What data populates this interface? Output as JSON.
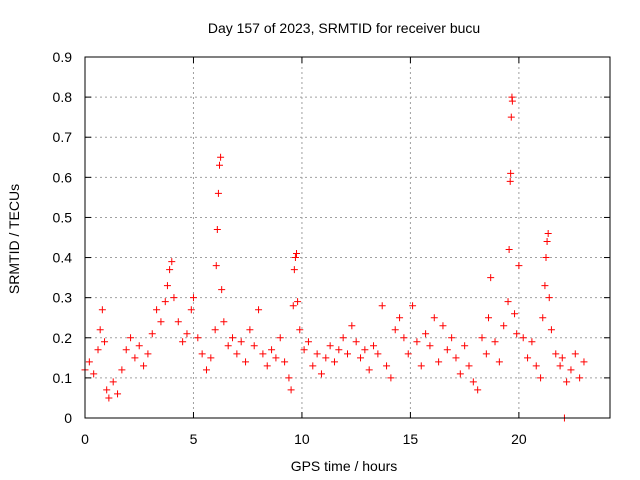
{
  "chart_data": {
    "type": "scatter",
    "title": "Day 157 of 2023, SRMTID for receiver bucu",
    "xlabel": "GPS time / hours",
    "ylabel": "SRMTID / TECUs",
    "xlim": [
      0,
      24.2
    ],
    "ylim": [
      0,
      0.9
    ],
    "xticks": [
      "0",
      "5",
      "10",
      "15",
      "20"
    ],
    "yticks": [
      "0",
      "0.1",
      "0.2",
      "0.3",
      "0.4",
      "0.5",
      "0.6",
      "0.7",
      "0.8",
      "0.9"
    ],
    "grid": true,
    "marker": "+",
    "color": "#ff0000",
    "series": [
      {
        "name": "SRMTID",
        "points": [
          [
            0.0,
            0.12
          ],
          [
            0.2,
            0.14
          ],
          [
            0.4,
            0.11
          ],
          [
            0.6,
            0.17
          ],
          [
            0.7,
            0.22
          ],
          [
            0.8,
            0.27
          ],
          [
            0.9,
            0.19
          ],
          [
            1.0,
            0.07
          ],
          [
            1.1,
            0.05
          ],
          [
            1.3,
            0.09
          ],
          [
            1.5,
            0.06
          ],
          [
            1.7,
            0.12
          ],
          [
            1.9,
            0.17
          ],
          [
            2.1,
            0.2
          ],
          [
            2.3,
            0.15
          ],
          [
            2.5,
            0.18
          ],
          [
            2.7,
            0.13
          ],
          [
            2.9,
            0.16
          ],
          [
            3.1,
            0.21
          ],
          [
            3.3,
            0.27
          ],
          [
            3.5,
            0.24
          ],
          [
            3.7,
            0.29
          ],
          [
            3.8,
            0.33
          ],
          [
            3.9,
            0.37
          ],
          [
            4.0,
            0.39
          ],
          [
            4.1,
            0.3
          ],
          [
            4.3,
            0.24
          ],
          [
            4.5,
            0.19
          ],
          [
            4.7,
            0.21
          ],
          [
            4.9,
            0.27
          ],
          [
            5.0,
            0.3
          ],
          [
            5.2,
            0.2
          ],
          [
            5.4,
            0.16
          ],
          [
            5.6,
            0.12
          ],
          [
            5.8,
            0.15
          ],
          [
            6.0,
            0.22
          ],
          [
            6.05,
            0.38
          ],
          [
            6.1,
            0.47
          ],
          [
            6.15,
            0.56
          ],
          [
            6.2,
            0.63
          ],
          [
            6.25,
            0.65
          ],
          [
            6.3,
            0.32
          ],
          [
            6.4,
            0.24
          ],
          [
            6.6,
            0.18
          ],
          [
            6.8,
            0.2
          ],
          [
            7.0,
            0.16
          ],
          [
            7.2,
            0.19
          ],
          [
            7.4,
            0.14
          ],
          [
            7.6,
            0.22
          ],
          [
            7.8,
            0.18
          ],
          [
            8.0,
            0.27
          ],
          [
            8.2,
            0.16
          ],
          [
            8.4,
            0.13
          ],
          [
            8.6,
            0.17
          ],
          [
            8.8,
            0.15
          ],
          [
            9.0,
            0.2
          ],
          [
            9.2,
            0.14
          ],
          [
            9.4,
            0.1
          ],
          [
            9.5,
            0.07
          ],
          [
            9.6,
            0.28
          ],
          [
            9.65,
            0.37
          ],
          [
            9.7,
            0.4
          ],
          [
            9.75,
            0.41
          ],
          [
            9.8,
            0.29
          ],
          [
            9.9,
            0.22
          ],
          [
            10.1,
            0.17
          ],
          [
            10.3,
            0.19
          ],
          [
            10.5,
            0.13
          ],
          [
            10.7,
            0.16
          ],
          [
            10.9,
            0.11
          ],
          [
            11.1,
            0.15
          ],
          [
            11.3,
            0.18
          ],
          [
            11.5,
            0.14
          ],
          [
            11.7,
            0.17
          ],
          [
            11.9,
            0.2
          ],
          [
            12.1,
            0.16
          ],
          [
            12.3,
            0.23
          ],
          [
            12.5,
            0.19
          ],
          [
            12.7,
            0.15
          ],
          [
            12.9,
            0.17
          ],
          [
            13.1,
            0.12
          ],
          [
            13.3,
            0.18
          ],
          [
            13.5,
            0.16
          ],
          [
            13.7,
            0.28
          ],
          [
            13.9,
            0.13
          ],
          [
            14.1,
            0.1
          ],
          [
            14.3,
            0.22
          ],
          [
            14.5,
            0.25
          ],
          [
            14.7,
            0.2
          ],
          [
            14.9,
            0.16
          ],
          [
            15.1,
            0.28
          ],
          [
            15.3,
            0.19
          ],
          [
            15.5,
            0.13
          ],
          [
            15.7,
            0.21
          ],
          [
            15.9,
            0.18
          ],
          [
            16.1,
            0.25
          ],
          [
            16.3,
            0.14
          ],
          [
            16.5,
            0.23
          ],
          [
            16.7,
            0.17
          ],
          [
            16.9,
            0.2
          ],
          [
            17.1,
            0.15
          ],
          [
            17.3,
            0.11
          ],
          [
            17.5,
            0.18
          ],
          [
            17.7,
            0.13
          ],
          [
            17.9,
            0.09
          ],
          [
            18.1,
            0.07
          ],
          [
            18.3,
            0.2
          ],
          [
            18.5,
            0.16
          ],
          [
            18.6,
            0.25
          ],
          [
            18.7,
            0.35
          ],
          [
            18.9,
            0.19
          ],
          [
            19.1,
            0.14
          ],
          [
            19.3,
            0.23
          ],
          [
            19.5,
            0.29
          ],
          [
            19.55,
            0.42
          ],
          [
            19.6,
            0.59
          ],
          [
            19.62,
            0.61
          ],
          [
            19.65,
            0.75
          ],
          [
            19.68,
            0.8
          ],
          [
            19.7,
            0.79
          ],
          [
            19.8,
            0.26
          ],
          [
            19.9,
            0.21
          ],
          [
            20.0,
            0.38
          ],
          [
            20.2,
            0.2
          ],
          [
            20.4,
            0.15
          ],
          [
            20.6,
            0.19
          ],
          [
            20.8,
            0.13
          ],
          [
            21.0,
            0.1
          ],
          [
            21.1,
            0.25
          ],
          [
            21.2,
            0.33
          ],
          [
            21.25,
            0.4
          ],
          [
            21.3,
            0.44
          ],
          [
            21.35,
            0.46
          ],
          [
            21.4,
            0.3
          ],
          [
            21.5,
            0.22
          ],
          [
            21.7,
            0.16
          ],
          [
            21.9,
            0.13
          ],
          [
            22.0,
            0.15
          ],
          [
            22.1,
            0.0
          ],
          [
            22.2,
            0.09
          ],
          [
            22.4,
            0.12
          ],
          [
            22.6,
            0.16
          ],
          [
            22.8,
            0.1
          ],
          [
            23.0,
            0.14
          ]
        ]
      }
    ]
  }
}
